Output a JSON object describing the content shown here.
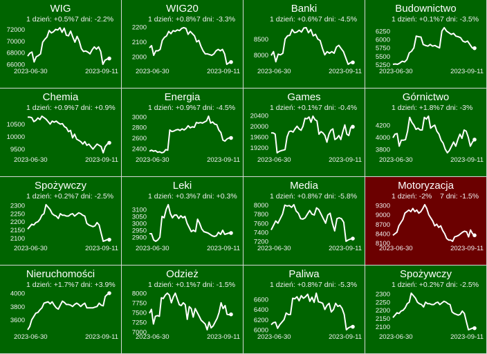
{
  "colors": {
    "up": "#006400",
    "down": "#6b0000",
    "line": "#ffffff",
    "grid": "#d8d8d8"
  },
  "labels": {
    "day_prefix": "1 dzień: ",
    "week_prefix": "7 dni: "
  },
  "chart_data": [
    {
      "type": "line",
      "title": "WIG",
      "day": "+0.5%",
      "week": "-2.2%",
      "trend": "up",
      "x_start": "2023-06-30",
      "x_end": "2023-09-11",
      "yticks": [
        66000,
        68000,
        70000,
        72000
      ],
      "values": [
        67400,
        67900,
        68100,
        66400,
        67300,
        67500,
        67800,
        69800,
        70300,
        70700,
        71800,
        71400,
        71600,
        72000,
        71900,
        72300,
        71500,
        72200,
        71000,
        70900,
        71700,
        70700,
        69800,
        70800,
        70000,
        68700,
        68200,
        68300,
        68100,
        67800,
        68500,
        69000,
        68600,
        69000,
        68200,
        66000,
        66700,
        66900,
        67000
      ]
    },
    {
      "type": "line",
      "title": "WIG20",
      "day": "+0.8%",
      "week": "-3.3%",
      "trend": "up",
      "x_start": "2023-06-30",
      "x_end": "2023-09-11",
      "yticks": [
        2000,
        2100,
        2200
      ],
      "values": [
        2060,
        2075,
        2010,
        2040,
        2040,
        2050,
        2110,
        2130,
        2140,
        2170,
        2155,
        2175,
        2170,
        2180,
        2175,
        2190,
        2195,
        2190,
        2150,
        2170,
        2155,
        2140,
        2100,
        2110,
        2070,
        2040,
        2020,
        2020,
        2015,
        2010,
        2020,
        2040,
        2050,
        2040,
        2050,
        2020,
        1950,
        1960,
        1965
      ]
    },
    {
      "type": "line",
      "title": "Banki",
      "day": "+0.6%",
      "week": "-4.5%",
      "trend": "up",
      "x_start": "2023-06-30",
      "x_end": "2023-09-11",
      "yticks": [
        8000,
        8500
      ],
      "values": [
        7980,
        8100,
        7780,
        8020,
        8000,
        8050,
        8500,
        8600,
        8620,
        8800,
        8700,
        8720,
        8780,
        8720,
        8850,
        8860,
        8700,
        8800,
        8600,
        8650,
        8500,
        8450,
        8200,
        8000,
        8100,
        8050,
        8100,
        8050,
        8250,
        8300,
        8200,
        8100,
        7900,
        7700,
        7750,
        7760
      ]
    },
    {
      "type": "line",
      "title": "Budownictwo",
      "day": "+0.1%",
      "week": "-3.5%",
      "trend": "up",
      "x_start": "2023-06-30",
      "x_end": "2023-09-11",
      "yticks": [
        5250,
        5500,
        5750,
        6000,
        6250
      ],
      "values": [
        5260,
        5270,
        5260,
        5300,
        5350,
        5330,
        5400,
        5600,
        5650,
        5750,
        6100,
        6080,
        6070,
        5850,
        5820,
        5800,
        5850,
        5800,
        5820,
        5780,
        5750,
        6250,
        6350,
        6250,
        6200,
        6150,
        6180,
        6100,
        6080,
        6050,
        5950,
        5920,
        5950,
        5850,
        5750,
        5740
      ]
    },
    {
      "type": "line",
      "title": "Chemia",
      "day": "+0.9%",
      "week": "+0.9%",
      "trend": "up",
      "x_start": "2023-06-30",
      "x_end": "2023-09-11",
      "yticks": [
        9500,
        10000,
        10500
      ],
      "values": [
        10780,
        10780,
        10760,
        10600,
        10650,
        10750,
        10680,
        10820,
        10760,
        10700,
        10600,
        10500,
        10620,
        10580,
        10620,
        10550,
        10500,
        10520,
        10400,
        10350,
        10200,
        10250,
        9950,
        10100,
        9900,
        9850,
        9800,
        9700,
        9800,
        9650,
        9700,
        9600,
        9500,
        9600,
        9700,
        9650,
        9600,
        9350,
        9600,
        9700,
        9750
      ]
    },
    {
      "type": "line",
      "title": "Energia",
      "day": "+0.9%",
      "week": "-4.5%",
      "trend": "up",
      "x_start": "2023-06-30",
      "x_end": "2023-09-11",
      "yticks": [
        2400,
        2600,
        2800,
        3000
      ],
      "values": [
        2350,
        2370,
        2350,
        2360,
        2330,
        2340,
        2320,
        2330,
        2380,
        2370,
        2750,
        2720,
        2730,
        2750,
        2760,
        2740,
        2770,
        2750,
        2780,
        2830,
        2790,
        2810,
        2800,
        2890,
        2880,
        2890,
        2880,
        2900,
        2920,
        3010,
        2880,
        2900,
        2860,
        2850,
        2750,
        2700,
        2560,
        2540,
        2580,
        2600,
        2600
      ]
    },
    {
      "type": "line",
      "title": "Games",
      "day": "+0.1%",
      "week": "-0.4%",
      "trend": "up",
      "x_start": "2023-06-30",
      "x_end": "2023-09-11",
      "yticks": [
        19200,
        19600,
        20000,
        20400
      ],
      "values": [
        19750,
        19750,
        19700,
        19000,
        19050,
        19080,
        19100,
        19120,
        19600,
        19800,
        19820,
        19780,
        19900,
        20000,
        19900,
        19850,
        20000,
        20300,
        20280,
        20350,
        20150,
        20380,
        20250,
        20200,
        19700,
        19800,
        19750,
        19650,
        19400,
        19700,
        19850,
        19900,
        19500,
        19550,
        19650,
        19500,
        19800,
        20050,
        19700,
        19650,
        19950,
        19980
      ]
    },
    {
      "type": "line",
      "title": "Górnictwo",
      "day": "+1.8%",
      "week": "-3%",
      "trend": "up",
      "x_start": "2023-06-30",
      "x_end": "2023-09-11",
      "yticks": [
        3800,
        4000,
        4200
      ],
      "values": [
        3990,
        4050,
        4060,
        3850,
        3950,
        3950,
        3960,
        4100,
        4330,
        4250,
        4200,
        4130,
        4150,
        4120,
        4120,
        4330,
        4300,
        4350,
        4150,
        4180,
        4200,
        4100,
        4050,
        3950,
        3900,
        3800,
        3740,
        3780,
        3850,
        3920,
        3850,
        3960,
        4050,
        3980,
        4120,
        4100,
        4000,
        3850,
        3920,
        3960
      ]
    },
    {
      "type": "line",
      "title": "Spożywczy",
      "day": "+0.2%",
      "week": "-2.5%",
      "trend": "up",
      "x_start": "2023-06-30",
      "x_end": "2023-09-11",
      "yticks": [
        2100,
        2150,
        2200,
        2250,
        2300
      ],
      "values": [
        2155,
        2170,
        2185,
        2180,
        2195,
        2200,
        2215,
        2240,
        2250,
        2305,
        2290,
        2275,
        2250,
        2240,
        2235,
        2220,
        2250,
        2240,
        2240,
        2235,
        2235,
        2245,
        2250,
        2235,
        2245,
        2255,
        2250,
        2240,
        2235,
        2190,
        2180,
        2175,
        2170,
        2175,
        2195,
        2180,
        2130,
        2080,
        2085,
        2090,
        2090
      ]
    },
    {
      "type": "line",
      "title": "Leki",
      "day": "+0.3%",
      "week": "+0.3%",
      "trend": "up",
      "x_start": "2023-06-30",
      "x_end": "2023-09-11",
      "yticks": [
        2900,
        2950,
        3000,
        3050,
        3100
      ],
      "values": [
        2925,
        2925,
        2880,
        2870,
        2880,
        2900,
        3050,
        3040,
        3100,
        3135,
        3070,
        3040,
        3060,
        3060,
        3035,
        3055,
        3040,
        3050,
        3000,
        2970,
        2940,
        2950,
        2940,
        3030,
        3000,
        2960,
        2940,
        2935,
        2930,
        2920,
        2910,
        2905,
        2910,
        2935,
        2920,
        2950,
        2920,
        2925,
        2930,
        2930
      ]
    },
    {
      "type": "line",
      "title": "Media",
      "day": "+0.8%",
      "week": "-5.8%",
      "trend": "up",
      "x_start": "2023-06-30",
      "x_end": "2023-09-11",
      "yticks": [
        7200,
        7400,
        7600,
        7800,
        8000
      ],
      "values": [
        7450,
        7550,
        7650,
        7600,
        7700,
        7800,
        8000,
        7980,
        7990,
        7950,
        8010,
        7870,
        7820,
        7700,
        7690,
        7720,
        7800,
        7880,
        7800,
        7780,
        7940,
        7900,
        7800,
        7700,
        7600,
        7780,
        7820,
        7600,
        7430,
        7700,
        7720,
        7700,
        7620,
        7200,
        7230,
        7250,
        7260
      ]
    },
    {
      "type": "line",
      "title": "Motoryzacja",
      "day": "-2%",
      "week": "-1.5%",
      "trend": "down",
      "x_start": "2023-06-30",
      "x_end": "2023-09-11",
      "yticks": [
        8100,
        8400,
        8700,
        9000,
        9300
      ],
      "values": [
        8350,
        8400,
        8450,
        8650,
        8750,
        8850,
        9050,
        9100,
        9150,
        9100,
        9200,
        9100,
        9150,
        9050,
        9100,
        9200,
        9320,
        9200,
        9000,
        8900,
        8800,
        8650,
        8700,
        8600,
        8650,
        8500,
        8400,
        8250,
        8200,
        8200,
        8160,
        8300,
        8320,
        8350,
        8400,
        8450,
        8480,
        8460,
        8300,
        8520,
        8400,
        8350
      ]
    },
    {
      "type": "line",
      "title": "Nieruchomości",
      "day": "+1.7%",
      "week": "+3.9%",
      "trend": "up",
      "x_start": "2023-06-30",
      "x_end": "2023-09-11",
      "yticks": [
        3600,
        3800,
        4000
      ],
      "values": [
        3450,
        3500,
        3600,
        3650,
        3700,
        3710,
        3750,
        3780,
        3850,
        3860,
        3870,
        3840,
        3870,
        3820,
        3780,
        3760,
        3820,
        3880,
        3860,
        3830,
        3830,
        3820,
        3800,
        3830,
        3850,
        3830,
        3800,
        3830,
        3850,
        3780,
        3780,
        3780,
        3780,
        3790,
        3800,
        3850,
        3820,
        3810,
        3950,
        3980,
        4000
      ]
    },
    {
      "type": "line",
      "title": "Odzież",
      "day": "+0.1%",
      "week": "-1.5%",
      "trend": "up",
      "x_start": "2023-06-30",
      "x_end": "2023-09-11",
      "yticks": [
        7000,
        7250,
        7500,
        7750,
        8000
      ],
      "values": [
        7480,
        7580,
        7200,
        7400,
        7420,
        7400,
        7880,
        7860,
        7950,
        8000,
        7950,
        7750,
        7900,
        8000,
        7850,
        7700,
        7680,
        7750,
        7700,
        7320,
        7650,
        7600,
        7380,
        7600,
        7500,
        7400,
        7300,
        7250,
        7200,
        7050,
        7250,
        7100,
        7150,
        7250,
        7350,
        7500,
        7750,
        7600,
        7680,
        7450,
        7440,
        7450
      ]
    },
    {
      "type": "line",
      "title": "Paliwa",
      "day": "+0.8%",
      "week": "-5.3%",
      "trend": "up",
      "x_start": "2023-06-30",
      "x_end": "2023-09-11",
      "yticks": [
        6000,
        6200,
        6400,
        6600
      ],
      "values": [
        6100,
        6140,
        6150,
        6030,
        6100,
        6150,
        6200,
        6330,
        6300,
        6300,
        6620,
        6610,
        6650,
        6570,
        6670,
        6620,
        6650,
        6700,
        6560,
        6640,
        6540,
        6720,
        6550,
        6540,
        6520,
        6400,
        6480,
        6520,
        6350,
        6400,
        6520,
        6460,
        6480,
        6420,
        6300,
        6000,
        6040,
        6060,
        6060
      ]
    },
    {
      "type": "line",
      "title": "Spożywczy",
      "day": "+0.2%",
      "week": "-2.5%",
      "trend": "up",
      "x_start": "2023-06-30",
      "x_end": "2023-09-11",
      "yticks": [
        2100,
        2150,
        2200,
        2250,
        2300
      ],
      "values": [
        2155,
        2170,
        2185,
        2180,
        2195,
        2200,
        2215,
        2240,
        2250,
        2305,
        2290,
        2275,
        2250,
        2240,
        2235,
        2220,
        2250,
        2240,
        2240,
        2235,
        2235,
        2245,
        2250,
        2235,
        2245,
        2255,
        2250,
        2240,
        2235,
        2190,
        2180,
        2175,
        2170,
        2175,
        2195,
        2180,
        2130,
        2080,
        2085,
        2090,
        2090
      ]
    }
  ]
}
